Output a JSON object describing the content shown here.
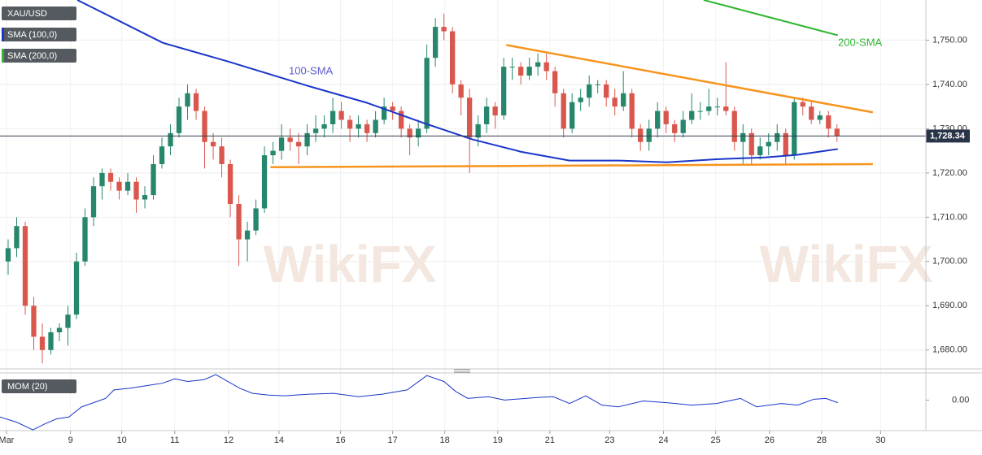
{
  "chart_data": {
    "type": "candlestick",
    "symbol": "XAU/USD",
    "indicators": [
      "SMA (100,0)",
      "SMA (200,0)"
    ],
    "indicator_colors": [
      "#1a35c9",
      "#2fb52f"
    ],
    "up_color": "#26876c",
    "down_color": "#d9574d",
    "ohlc": [
      [
        1700,
        1705,
        1697,
        1703
      ],
      [
        1703,
        1710,
        1701,
        1708
      ],
      [
        1708,
        1709,
        1688,
        1690
      ],
      [
        1690,
        1692,
        1680,
        1683
      ],
      [
        1683,
        1686,
        1677,
        1680
      ],
      [
        1680,
        1685,
        1679,
        1684
      ],
      [
        1684,
        1686,
        1682,
        1685
      ],
      [
        1685,
        1690,
        1681,
        1688
      ],
      [
        1688,
        1702,
        1687,
        1700
      ],
      [
        1700,
        1712,
        1699,
        1710
      ],
      [
        1710,
        1719,
        1708,
        1717
      ],
      [
        1717,
        1721,
        1714,
        1720
      ],
      [
        1720,
        1721,
        1716,
        1718
      ],
      [
        1718,
        1719,
        1714,
        1716
      ],
      [
        1716,
        1720,
        1715,
        1718
      ],
      [
        1718,
        1719,
        1711,
        1714
      ],
      [
        1714,
        1717,
        1712,
        1715
      ],
      [
        1715,
        1724,
        1714,
        1722
      ],
      [
        1722,
        1728,
        1721,
        1726
      ],
      [
        1726,
        1731,
        1724,
        1729
      ],
      [
        1729,
        1737,
        1728,
        1735
      ],
      [
        1735,
        1740,
        1732,
        1738
      ],
      [
        1738,
        1739,
        1732,
        1734
      ],
      [
        1734,
        1735,
        1721,
        1727
      ],
      [
        1727,
        1729,
        1723,
        1726
      ],
      [
        1726,
        1728,
        1719,
        1722
      ],
      [
        1722,
        1723,
        1710,
        1713
      ],
      [
        1713,
        1715,
        1699,
        1705
      ],
      [
        1705,
        1709,
        1700,
        1707
      ],
      [
        1707,
        1714,
        1706,
        1712
      ],
      [
        1712,
        1726,
        1711,
        1724
      ],
      [
        1724,
        1727,
        1722,
        1725
      ],
      [
        1725,
        1731,
        1723,
        1728
      ],
      [
        1728,
        1730,
        1725,
        1727
      ],
      [
        1727,
        1729,
        1722,
        1726
      ],
      [
        1726,
        1731,
        1724,
        1729
      ],
      [
        1729,
        1733,
        1727,
        1730
      ],
      [
        1730,
        1733,
        1728,
        1731
      ],
      [
        1731,
        1737,
        1729,
        1734
      ],
      [
        1734,
        1736,
        1730,
        1732
      ],
      [
        1732,
        1733,
        1727,
        1730
      ],
      [
        1730,
        1733,
        1728,
        1731
      ],
      [
        1731,
        1732,
        1727,
        1729
      ],
      [
        1729,
        1734,
        1728,
        1732
      ],
      [
        1732,
        1737,
        1731,
        1735
      ],
      [
        1735,
        1736,
        1732,
        1734
      ],
      [
        1734,
        1735,
        1728,
        1730
      ],
      [
        1730,
        1731,
        1724,
        1728
      ],
      [
        1728,
        1732,
        1726,
        1730
      ],
      [
        1730,
        1749,
        1729,
        1746
      ],
      [
        1746,
        1755,
        1744,
        1753
      ],
      [
        1753,
        1756,
        1750,
        1752
      ],
      [
        1752,
        1753,
        1738,
        1740
      ],
      [
        1740,
        1741,
        1733,
        1737
      ],
      [
        1737,
        1739,
        1720,
        1728
      ],
      [
        1728,
        1733,
        1726,
        1731
      ],
      [
        1731,
        1737,
        1729,
        1735
      ],
      [
        1735,
        1736,
        1730,
        1733
      ],
      [
        1733,
        1746,
        1732,
        1744
      ],
      [
        1744,
        1746,
        1741,
        1744
      ],
      [
        1744,
        1745,
        1740,
        1742
      ],
      [
        1742,
        1746,
        1741,
        1744
      ],
      [
        1744,
        1747,
        1742,
        1745
      ],
      [
        1745,
        1747,
        1741,
        1743
      ],
      [
        1743,
        1744,
        1735,
        1738
      ],
      [
        1738,
        1739,
        1728,
        1730
      ],
      [
        1730,
        1738,
        1729,
        1736
      ],
      [
        1736,
        1739,
        1734,
        1737
      ],
      [
        1737,
        1742,
        1735,
        1740
      ],
      [
        1740,
        1741,
        1738,
        1740
      ],
      [
        1740,
        1741,
        1735,
        1737
      ],
      [
        1737,
        1739,
        1733,
        1735
      ],
      [
        1735,
        1743,
        1734,
        1738
      ],
      [
        1738,
        1739,
        1728,
        1730
      ],
      [
        1730,
        1731,
        1725,
        1727
      ],
      [
        1727,
        1732,
        1725,
        1730
      ],
      [
        1730,
        1736,
        1728,
        1734
      ],
      [
        1734,
        1735,
        1729,
        1731
      ],
      [
        1731,
        1732,
        1727,
        1729
      ],
      [
        1729,
        1734,
        1728,
        1732
      ],
      [
        1732,
        1738,
        1731,
        1734
      ],
      [
        1734,
        1736,
        1732,
        1734
      ],
      [
        1734,
        1739,
        1733,
        1735
      ],
      [
        1735,
        1737,
        1733,
        1735
      ],
      [
        1735,
        1745,
        1733,
        1734
      ],
      [
        1734,
        1735,
        1725,
        1727
      ],
      [
        1727,
        1731,
        1722,
        1729
      ],
      [
        1729,
        1730,
        1722,
        1724
      ],
      [
        1724,
        1728,
        1723,
        1726
      ],
      [
        1726,
        1729,
        1724,
        1727
      ],
      [
        1727,
        1731,
        1725,
        1729
      ],
      [
        1729,
        1730,
        1722,
        1724
      ],
      [
        1724,
        1737,
        1723,
        1736
      ],
      [
        1736,
        1737,
        1733,
        1735
      ],
      [
        1735,
        1736,
        1731,
        1732
      ],
      [
        1732,
        1734,
        1731,
        1733
      ],
      [
        1733,
        1734,
        1728,
        1730
      ],
      [
        1730,
        1731,
        1727,
        1728.34
      ]
    ],
    "overlays": [
      {
        "name": "100-SMA",
        "color": "#1a35c9",
        "label_color": "#5a5ad0",
        "x": [
          8.1,
          18.1,
          25.7,
          35.2,
          41.9,
          48.6,
          54.3,
          60,
          65.7,
          71.4,
          77.1,
          82.9,
          88.6,
          92.4,
          97.1
        ],
        "values": [
          1759.07,
          1749.4,
          1745.2,
          1739.6,
          1735.9,
          1731.3,
          1727.6,
          1724.8,
          1722.8,
          1722.8,
          1722.4,
          1723.1,
          1723.5,
          1724.1,
          1725.4
        ]
      },
      {
        "name": "200-SMA",
        "color": "#2fb52f",
        "label_color": "#2fb52f",
        "x": [
          81.4,
          97.1
        ],
        "values": [
          1759.07,
          1751.1
        ]
      }
    ],
    "trendlines": [
      {
        "color": "#f7941d",
        "x": [
          58.3,
          101.2
        ],
        "values": [
          1748.9,
          1733.7
        ]
      },
      {
        "color": "#f7941d",
        "x": [
          30.7,
          101.2
        ],
        "values": [
          1721.3,
          1722.0
        ]
      }
    ],
    "last_price": {
      "value": 1728.34,
      "label": "1,728.34"
    },
    "xlim": [
      -0.95,
      107.4
    ],
    "ylim": [
      1675.74,
      1759.07
    ],
    "yticks": [
      {
        "value": 1680,
        "label": "1,680.00"
      },
      {
        "value": 1690,
        "label": "1,690.00"
      },
      {
        "value": 1700,
        "label": "1,700.00"
      },
      {
        "value": 1710,
        "label": "1,710.00"
      },
      {
        "value": 1720,
        "label": "1,720.00"
      },
      {
        "value": 1730,
        "label": "1,730.00"
      },
      {
        "value": 1740,
        "label": "1,740.00"
      },
      {
        "value": 1750,
        "label": "1,750.00"
      }
    ],
    "xticks": [
      {
        "value": -0.2,
        "label": "Mar"
      },
      {
        "value": 7.3,
        "label": "9"
      },
      {
        "value": 13.3,
        "label": "10"
      },
      {
        "value": 19.5,
        "label": "11"
      },
      {
        "value": 25.8,
        "label": "12"
      },
      {
        "value": 31.7,
        "label": "14"
      },
      {
        "value": 38.9,
        "label": "16"
      },
      {
        "value": 45,
        "label": "17"
      },
      {
        "value": 51.1,
        "label": "18"
      },
      {
        "value": 57.3,
        "label": "19"
      },
      {
        "value": 63.4,
        "label": "21"
      },
      {
        "value": 70.4,
        "label": "23"
      },
      {
        "value": 76.7,
        "label": "24"
      },
      {
        "value": 82.8,
        "label": "25"
      },
      {
        "value": 89.1,
        "label": "26"
      },
      {
        "value": 95.2,
        "label": "28"
      },
      {
        "value": 102.1,
        "label": "30"
      }
    ],
    "momentum": {
      "name": "MOM (20)",
      "color": "#1a35c9",
      "ylim": [
        -34.4,
        30.6
      ],
      "yticks": [
        {
          "value": 0,
          "label": "0.00"
        }
      ],
      "x": [
        -0.95,
        1,
        2.9,
        4.3,
        5.7,
        7.1,
        8.6,
        10,
        11.4,
        12.4,
        14.3,
        16.2,
        18.1,
        19.5,
        21,
        22.9,
        24.3,
        25.7,
        27.1,
        28.6,
        30.5,
        32.4,
        35.2,
        38.1,
        41,
        43.8,
        46.7,
        49,
        51,
        52.4,
        53.8,
        56.2,
        58.1,
        61.9,
        63.8,
        65.7,
        67.6,
        69.5,
        71.4,
        74.3,
        77.1,
        80,
        82.9,
        85.7,
        87.6,
        90.5,
        92.4,
        94.3,
        95.7,
        97.1
      ],
      "values": [
        -19.1,
        -24.9,
        -33.5,
        -26.8,
        -21,
        -19.1,
        -7.6,
        -2.9,
        1.9,
        11.5,
        13.4,
        16.3,
        19.1,
        23.9,
        21,
        22.9,
        28.7,
        21,
        13.4,
        7.6,
        5.7,
        4.8,
        6.7,
        7.6,
        3.8,
        6.7,
        11.5,
        27.7,
        21,
        9.6,
        1.9,
        3.8,
        0,
        2.9,
        3.8,
        -3.8,
        4.8,
        -5.7,
        -7.6,
        -1,
        -2.9,
        -5.7,
        -3.8,
        1.9,
        -7.6,
        -3.8,
        -5.7,
        1,
        1.9,
        -2.9
      ]
    },
    "watermark": "WikiFX",
    "grid": true
  }
}
